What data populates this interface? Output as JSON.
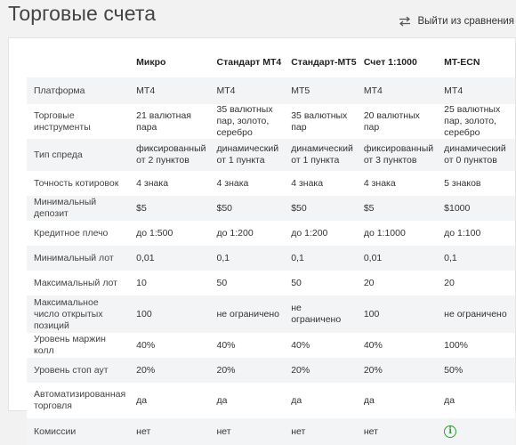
{
  "header": {
    "title": "Торговые счета",
    "exit_compare_label": "Выйти из сравнения",
    "exit_compare_icon": "swap-arrows-icon"
  },
  "table": {
    "columns": [
      "",
      "Микро",
      "Стандарт МТ4",
      "Стандарт-МТ5",
      "Счет 1:1000",
      "MT-ECN"
    ],
    "rows": [
      {
        "label": "Платформа",
        "values": [
          "MT4",
          "MT4",
          "MT5",
          "MT4",
          "MT4"
        ]
      },
      {
        "label": "Торговые инструменты",
        "values": [
          "21 валютная пара",
          "35 валютных пар, золото, серебро",
          "35 валютных пар",
          "20 валютных пар",
          "25 валютных пар, золото, серебро"
        ]
      },
      {
        "label": "Тип спреда",
        "values": [
          "фиксированный от 2 пунктов",
          "динамический от 1 пункта",
          "динамический от 1 пункта",
          "фиксированный от 3 пунктов",
          "динамический от 0 пунктов"
        ]
      },
      {
        "label": "Точность котировок",
        "values": [
          "4 знака",
          "4 знака",
          "4 знака",
          "4 знака",
          "5 знаков"
        ]
      },
      {
        "label": "Минимальный депозит",
        "values": [
          "$5",
          "$50",
          "$50",
          "$5",
          "$1000"
        ]
      },
      {
        "label": "Кредитное плечо",
        "values": [
          "до 1:500",
          "до 1:200",
          "до 1:200",
          "до 1:1000",
          "до 1:100"
        ]
      },
      {
        "label": "Минимальный лот",
        "values": [
          "0,01",
          "0,1",
          "0,1",
          "0,01",
          "0,1"
        ]
      },
      {
        "label": "Максимальный лот",
        "values": [
          "10",
          "50",
          "50",
          "20",
          "20"
        ]
      },
      {
        "label": "Максимальное число открытых позиций",
        "values": [
          "100",
          "не ограничено",
          "не ограничено",
          "100",
          "не ограничено"
        ]
      },
      {
        "label": "Уровень маржин колл",
        "values": [
          "40%",
          "40%",
          "40%",
          "40%",
          "100%"
        ]
      },
      {
        "label": "Уровень стоп аут",
        "values": [
          "20%",
          "20%",
          "20%",
          "20%",
          "50%"
        ]
      },
      {
        "label": "Автоматизированная торговля",
        "values": [
          "да",
          "да",
          "да",
          "да",
          "да"
        ]
      },
      {
        "label": "Комиссии",
        "values": [
          "нет",
          "нет",
          "нет",
          "нет",
          ""
        ],
        "last_cell_icon": "info-icon"
      }
    ]
  },
  "colors": {
    "stripe": "#f3f4f5",
    "info_green": "#3a9a3a"
  }
}
